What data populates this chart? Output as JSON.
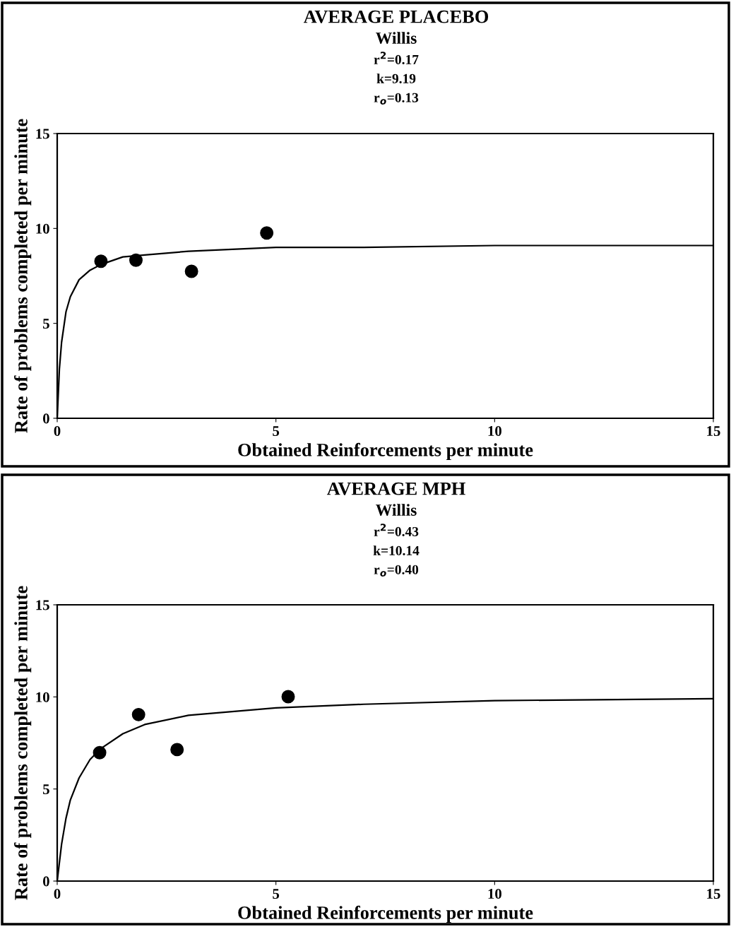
{
  "chart_data": [
    {
      "type": "scatter",
      "title": "AVERAGE PLACEBO",
      "subtitle": "Willis",
      "annotations": [
        "r$^{2}$=0.17",
        "k=9.19",
        "r$_{o}$=0.13"
      ],
      "xlabel": "Obtained Reinforcements per minute",
      "ylabel": "Rate of problems completed per minute",
      "xlim": [
        0,
        15
      ],
      "ylim": [
        0,
        15
      ],
      "xticks": [
        0,
        5,
        10,
        15
      ],
      "yticks": [
        0,
        5,
        10,
        15
      ],
      "grid": false,
      "legend": false,
      "series": [
        {
          "marker": "circle",
          "color": "#000000",
          "x": [
            1.0,
            1.8,
            3.07,
            4.79
          ],
          "values": [
            8.27,
            8.33,
            7.74,
            9.76
          ]
        },
        {
          "type": "line",
          "marker": "none",
          "line_style": "solid",
          "color": "#000000",
          "x": [
            0,
            0.05,
            0.1,
            0.2,
            0.3,
            0.5,
            0.75,
            1,
            1.5,
            2,
            3,
            4,
            5,
            7,
            10,
            15
          ],
          "values": [
            0,
            2.6,
            4.0,
            5.6,
            6.4,
            7.3,
            7.8,
            8.1,
            8.5,
            8.6,
            8.8,
            8.9,
            9.0,
            9.0,
            9.1,
            9.1
          ]
        }
      ]
    },
    {
      "type": "scatter",
      "title": "AVERAGE MPH",
      "subtitle": "Willis",
      "annotations": [
        "r$^{2}$=0.43",
        "k=10.14",
        "r$_{o}$=0.40"
      ],
      "xlabel": "Obtained Reinforcements per minute",
      "ylabel": "Rate of problems completed per minute",
      "xlim": [
        0,
        15
      ],
      "ylim": [
        0,
        15
      ],
      "xticks": [
        0,
        5,
        10,
        15
      ],
      "yticks": [
        0,
        5,
        10,
        15
      ],
      "grid": false,
      "legend": false,
      "series": [
        {
          "marker": "circle",
          "color": "#000000",
          "x": [
            0.97,
            1.86,
            2.74,
            5.28
          ],
          "values": [
            6.97,
            9.04,
            7.14,
            10.01
          ]
        },
        {
          "type": "line",
          "marker": "none",
          "line_style": "solid",
          "color": "#000000",
          "x": [
            0,
            0.1,
            0.2,
            0.3,
            0.5,
            0.75,
            1,
            1.5,
            2,
            3,
            4,
            5,
            7,
            10,
            15
          ],
          "values": [
            0,
            2.0,
            3.4,
            4.4,
            5.6,
            6.6,
            7.2,
            8.0,
            8.5,
            9.0,
            9.2,
            9.4,
            9.6,
            9.8,
            9.9
          ]
        }
      ]
    }
  ]
}
